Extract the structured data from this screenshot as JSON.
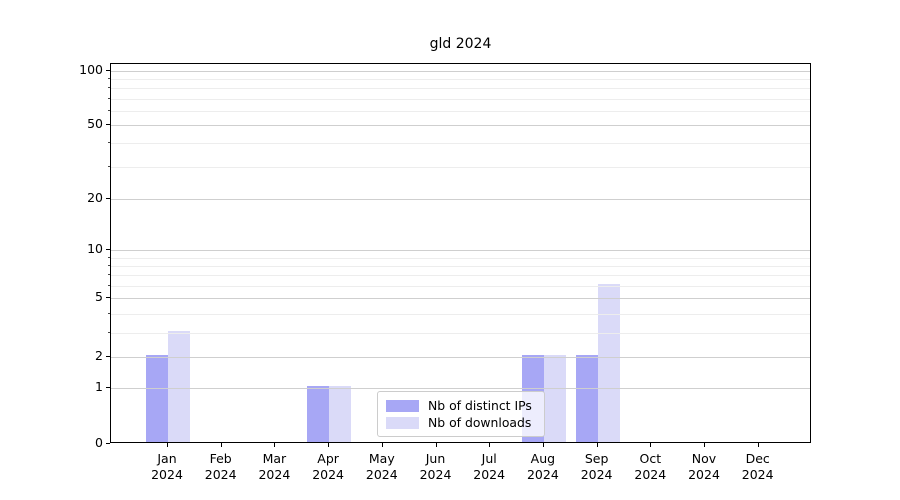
{
  "figure": {
    "title": "gld 2024"
  },
  "legend": {
    "items": [
      {
        "label": "Nb of distinct IPs",
        "color": "#a7a7f5"
      },
      {
        "label": "Nb of downloads",
        "color": "#dadaf8"
      }
    ]
  },
  "chart_data": {
    "type": "bar",
    "title": "gld 2024",
    "categories": [
      {
        "month": "Jan",
        "year": "2024"
      },
      {
        "month": "Feb",
        "year": "2024"
      },
      {
        "month": "Mar",
        "year": "2024"
      },
      {
        "month": "Apr",
        "year": "2024"
      },
      {
        "month": "May",
        "year": "2024"
      },
      {
        "month": "Jun",
        "year": "2024"
      },
      {
        "month": "Jul",
        "year": "2024"
      },
      {
        "month": "Aug",
        "year": "2024"
      },
      {
        "month": "Sep",
        "year": "2024"
      },
      {
        "month": "Oct",
        "year": "2024"
      },
      {
        "month": "Nov",
        "year": "2024"
      },
      {
        "month": "Dec",
        "year": "2024"
      }
    ],
    "series": [
      {
        "name": "Nb of distinct IPs",
        "color": "#a7a7f5",
        "values": [
          2,
          0,
          0,
          1,
          0,
          0,
          0,
          2,
          2,
          0,
          0,
          0
        ]
      },
      {
        "name": "Nb of downloads",
        "color": "#dadaf8",
        "values": [
          3,
          0,
          0,
          1,
          0,
          0,
          0,
          2,
          6,
          0,
          0,
          0
        ]
      }
    ],
    "xlabel": "",
    "ylabel": "",
    "yscale": "log1p",
    "ylim": [
      0,
      110
    ],
    "major_yticks": [
      0,
      1,
      2,
      5,
      10,
      20,
      50,
      100
    ],
    "minor_yticks": [
      3,
      4,
      6,
      7,
      8,
      9,
      30,
      40,
      60,
      70,
      80,
      90
    ],
    "grid": true,
    "grid_over_bars": true,
    "legend_position": "lower center"
  }
}
